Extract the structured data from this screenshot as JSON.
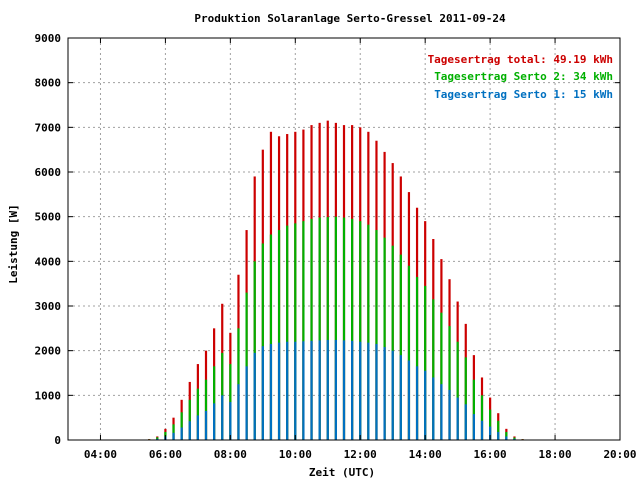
{
  "chart_data": {
    "type": "bar",
    "title": "Produktion Solaranlage Serto-Gressel 2011-09-24",
    "xlabel": "Zeit (UTC)",
    "ylabel": "Leistung [W]",
    "xlim": [
      "03:00",
      "20:00"
    ],
    "ylim": [
      0,
      9000
    ],
    "x_tick_labels": [
      "04:00",
      "06:00",
      "08:00",
      "10:00",
      "12:00",
      "14:00",
      "16:00",
      "18:00",
      "20:00"
    ],
    "y_tick_labels": [
      "0",
      "1000",
      "2000",
      "3000",
      "4000",
      "5000",
      "6000",
      "7000",
      "8000",
      "9000"
    ],
    "grid": true,
    "legend_position": "top-right",
    "legend": [
      {
        "label": "Tagesertrag total: 49.19 kWh",
        "color": "#cc0000"
      },
      {
        "label": "Tagesertrag Serto 2: 34 kWh",
        "color": "#00b000"
      },
      {
        "label": "Tagesertrag Serto 1: 15 kWh",
        "color": "#0070c0"
      }
    ],
    "series": [
      {
        "name": "Tagesertrag total",
        "color": "#cc0000",
        "x": [
          "05:30",
          "05:45",
          "06:00",
          "06:15",
          "06:30",
          "06:45",
          "07:00",
          "07:15",
          "07:30",
          "07:45",
          "08:00",
          "08:15",
          "08:30",
          "08:45",
          "09:00",
          "09:15",
          "09:30",
          "09:45",
          "10:00",
          "10:15",
          "10:30",
          "10:45",
          "11:00",
          "11:15",
          "11:30",
          "11:45",
          "12:00",
          "12:15",
          "12:30",
          "12:45",
          "13:00",
          "13:15",
          "13:30",
          "13:45",
          "14:00",
          "14:15",
          "14:30",
          "14:45",
          "15:00",
          "15:15",
          "15:30",
          "15:45",
          "16:00",
          "16:15",
          "16:30",
          "16:45",
          "17:00",
          "17:15"
        ],
        "values": [
          20,
          80,
          250,
          500,
          900,
          1300,
          1700,
          2000,
          2500,
          3050,
          2400,
          3700,
          4700,
          5900,
          6500,
          6900,
          6800,
          6850,
          6900,
          6950,
          7050,
          7100,
          7150,
          7100,
          7050,
          7050,
          7000,
          6900,
          6700,
          6450,
          6200,
          5900,
          5550,
          5200,
          4900,
          4500,
          4050,
          3600,
          3100,
          2600,
          1900,
          1400,
          950,
          600,
          250,
          80,
          20,
          0
        ]
      },
      {
        "name": "Tagesertrag Serto 2",
        "color": "#00b000",
        "x": [
          "05:30",
          "05:45",
          "06:00",
          "06:15",
          "06:30",
          "06:45",
          "07:00",
          "07:15",
          "07:30",
          "07:45",
          "08:00",
          "08:15",
          "08:30",
          "08:45",
          "09:00",
          "09:15",
          "09:30",
          "09:45",
          "10:00",
          "10:15",
          "10:30",
          "10:45",
          "11:00",
          "11:15",
          "11:30",
          "11:45",
          "12:00",
          "12:15",
          "12:30",
          "12:45",
          "13:00",
          "13:15",
          "13:30",
          "13:45",
          "14:00",
          "14:15",
          "14:30",
          "14:45",
          "15:00",
          "15:15",
          "15:30",
          "15:45",
          "16:00",
          "16:15",
          "16:30",
          "16:45",
          "17:00",
          "17:15"
        ],
        "values": [
          15,
          60,
          180,
          350,
          620,
          900,
          1150,
          1350,
          1650,
          1950,
          1700,
          2500,
          3300,
          4000,
          4400,
          4600,
          4700,
          4800,
          4850,
          4900,
          4950,
          4980,
          4990,
          5000,
          4980,
          4950,
          4900,
          4820,
          4700,
          4530,
          4350,
          4150,
          3900,
          3650,
          3450,
          3150,
          2850,
          2550,
          2200,
          1850,
          1350,
          1000,
          680,
          430,
          180,
          55,
          15,
          0
        ]
      },
      {
        "name": "Tagesertrag Serto 1",
        "color": "#0070c0",
        "x": [
          "05:30",
          "05:45",
          "06:00",
          "06:15",
          "06:30",
          "06:45",
          "07:00",
          "07:15",
          "07:30",
          "07:45",
          "08:00",
          "08:15",
          "08:30",
          "08:45",
          "09:00",
          "09:15",
          "09:30",
          "09:45",
          "10:00",
          "10:15",
          "10:30",
          "10:45",
          "11:00",
          "11:15",
          "11:30",
          "11:45",
          "12:00",
          "12:15",
          "12:30",
          "12:45",
          "13:00",
          "13:15",
          "13:30",
          "13:45",
          "14:00",
          "14:15",
          "14:30",
          "14:45",
          "15:00",
          "15:15",
          "15:30",
          "15:45",
          "16:00",
          "16:15",
          "16:30",
          "16:45",
          "17:00",
          "17:15"
        ],
        "values": [
          5,
          25,
          80,
          160,
          280,
          420,
          550,
          650,
          820,
          1000,
          850,
          1250,
          1650,
          1950,
          2100,
          2150,
          2180,
          2200,
          2200,
          2210,
          2220,
          2230,
          2240,
          2240,
          2230,
          2220,
          2200,
          2180,
          2150,
          2080,
          2000,
          1900,
          1780,
          1650,
          1550,
          1400,
          1250,
          1120,
          950,
          800,
          580,
          430,
          300,
          180,
          80,
          25,
          5,
          0
        ]
      }
    ]
  }
}
